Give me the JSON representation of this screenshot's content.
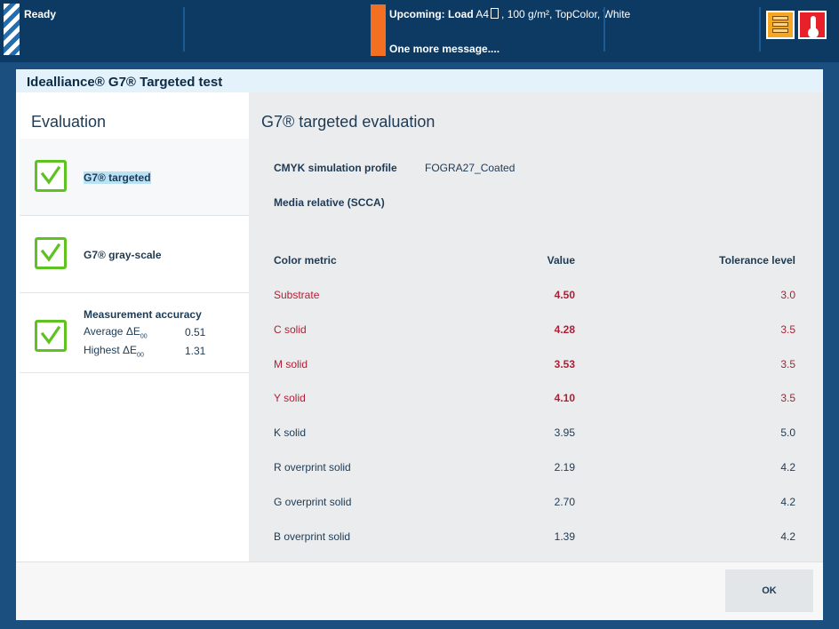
{
  "statusbar": {
    "status_text": "Ready",
    "upcoming_label": "Upcoming: Load",
    "upcoming_media_size": "A4",
    "upcoming_media_details": ", 100 g/m², TopColor, White",
    "more_messages": "One more message....",
    "icons": [
      "job-stack-icon",
      "thermometer-icon"
    ],
    "accent_color": "#f36f21"
  },
  "dialog": {
    "title": "Idealliance® G7® Targeted test",
    "ok_label": "OK"
  },
  "evaluation": {
    "heading": "Evaluation",
    "items": [
      {
        "label": "G7® targeted",
        "status": "passed",
        "selected": true
      },
      {
        "label": "G7® gray-scale",
        "status": "passed",
        "selected": false
      },
      {
        "label": "Measurement accuracy",
        "status": "passed",
        "selected": false
      }
    ],
    "accuracy": {
      "average_label": "Average ΔE",
      "average_sub": "00",
      "average_value": "0.51",
      "highest_label": "Highest ΔE",
      "highest_sub": "00",
      "highest_value": "1.31"
    }
  },
  "detail": {
    "heading": "G7® targeted evaluation",
    "profile_label": "CMYK simulation profile",
    "profile_value": "FOGRA27_Coated",
    "media_relative": "Media relative (SCCA)",
    "columns": {
      "metric": "Color metric",
      "value": "Value",
      "tolerance": "Tolerance level"
    },
    "rows": [
      {
        "metric": "Substrate",
        "value": "4.50",
        "tolerance": "3.0",
        "fail": true
      },
      {
        "metric": "C solid",
        "value": "4.28",
        "tolerance": "3.5",
        "fail": true
      },
      {
        "metric": "M solid",
        "value": "3.53",
        "tolerance": "3.5",
        "fail": true
      },
      {
        "metric": "Y solid",
        "value": "4.10",
        "tolerance": "3.5",
        "fail": true
      },
      {
        "metric": "K solid",
        "value": "3.95",
        "tolerance": "5.0",
        "fail": false
      },
      {
        "metric": "R overprint solid",
        "value": "2.19",
        "tolerance": "4.2",
        "fail": false
      },
      {
        "metric": "G overprint solid",
        "value": "2.70",
        "tolerance": "4.2",
        "fail": false
      },
      {
        "metric": "B overprint solid",
        "value": "1.39",
        "tolerance": "4.2",
        "fail": false
      }
    ],
    "fail_color": "#b01e35",
    "pass_check_color": "#5ec321"
  }
}
